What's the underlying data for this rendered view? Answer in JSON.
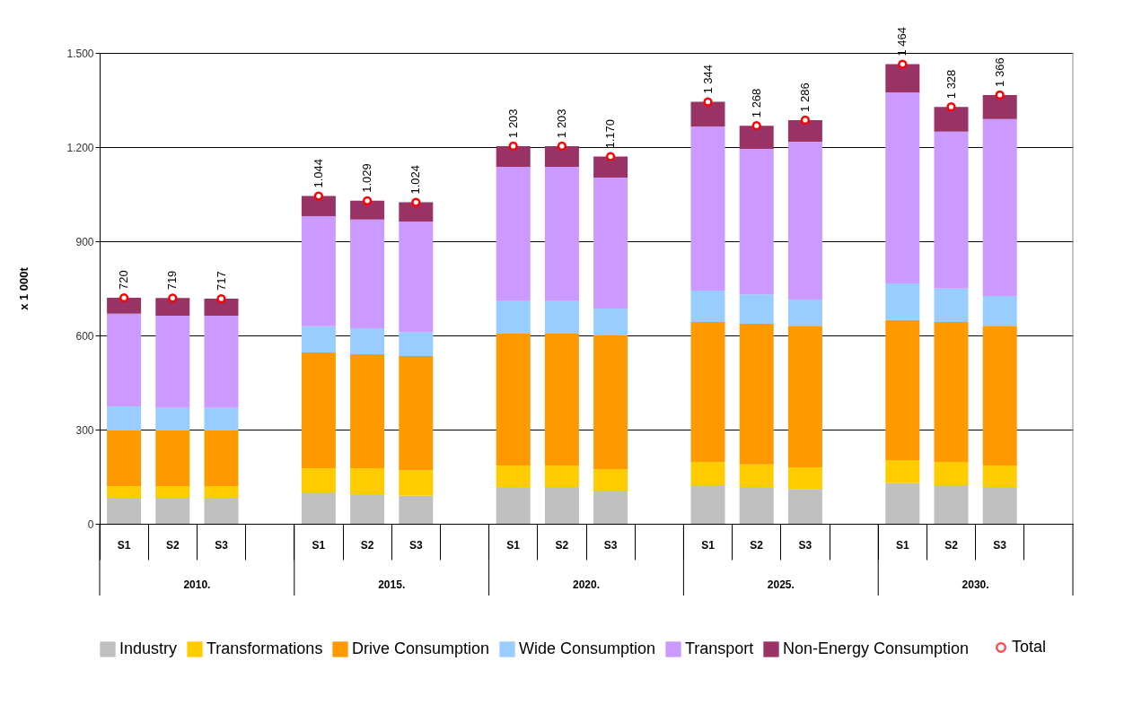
{
  "chart_data": {
    "type": "bar",
    "stacked": true,
    "ylabel": "x 1 000t",
    "categories": [
      "S1",
      "S2",
      "S3",
      null,
      "S1",
      "S2",
      "S3",
      null,
      "S1",
      "S2",
      "S3",
      null,
      "S1",
      "S2",
      "S3",
      null,
      "S1",
      "S2",
      "S3",
      null
    ],
    "annotations": [
      "2010.",
      "2015.",
      "2020.",
      "2025.",
      "2030."
    ],
    "series": [
      {
        "name": "Industry",
        "color": "#c0c0c0",
        "values": [
          83,
          83,
          83,
          null,
          100,
          94,
          89,
          null,
          117,
          117,
          106,
          null,
          123,
          117,
          111,
          null,
          129,
          123,
          117,
          null
        ]
      },
      {
        "name": "Transformations",
        "color": "#ffcc00",
        "values": [
          37,
          37,
          37,
          null,
          77,
          83,
          82,
          null,
          69,
          69,
          68,
          null,
          74,
          72,
          69,
          null,
          74,
          74,
          69,
          null
        ]
      },
      {
        "name": "Drive Consumption",
        "color": "#ff9900",
        "values": [
          177,
          177,
          177,
          null,
          369,
          363,
          363,
          null,
          420,
          420,
          426,
          null,
          446,
          448,
          451,
          null,
          446,
          446,
          445,
          null
        ]
      },
      {
        "name": "Wide Consumption",
        "color": "#99ccff",
        "values": [
          77,
          72,
          72,
          null,
          83,
          83,
          77,
          null,
          103,
          103,
          86,
          null,
          100,
          94,
          83,
          null,
          117,
          106,
          95,
          null
        ]
      },
      {
        "name": "Transport",
        "color": "#cc99ff",
        "values": [
          295,
          294,
          294,
          null,
          351,
          346,
          352,
          null,
          428,
          428,
          417,
          null,
          523,
          463,
          503,
          null,
          608,
          500,
          563,
          null
        ]
      },
      {
        "name": "Non-Energy Consumption",
        "color": "#993366",
        "values": [
          51,
          56,
          54,
          null,
          64,
          60,
          61,
          null,
          66,
          66,
          67,
          null,
          78,
          74,
          69,
          null,
          90,
          79,
          77,
          null
        ]
      },
      {
        "name": "Total",
        "type": "scatter",
        "marker": "circle",
        "color": "#ff0000",
        "values": [
          720,
          719,
          717,
          null,
          1044,
          1029,
          1024,
          null,
          1203,
          1203,
          1170,
          null,
          1344,
          1268,
          1286,
          null,
          1464,
          1328,
          1366,
          null
        ],
        "value_labels": [
          "720",
          "719",
          "717",
          null,
          "1.044",
          "1.029",
          "1.024",
          null,
          "1 203",
          "1 203",
          "1.170",
          null,
          "1 344",
          "1 268",
          "1 286",
          null,
          "1 464",
          "1 328",
          "1 366",
          null
        ]
      }
    ],
    "ylim": [
      0,
      1500
    ],
    "yticks": [
      0,
      300,
      600,
      900,
      {
        "value": 1200,
        "label": "1.200"
      },
      {
        "value": 1500,
        "label": "1.500"
      }
    ],
    "grid": "y",
    "legend": "bottom"
  }
}
